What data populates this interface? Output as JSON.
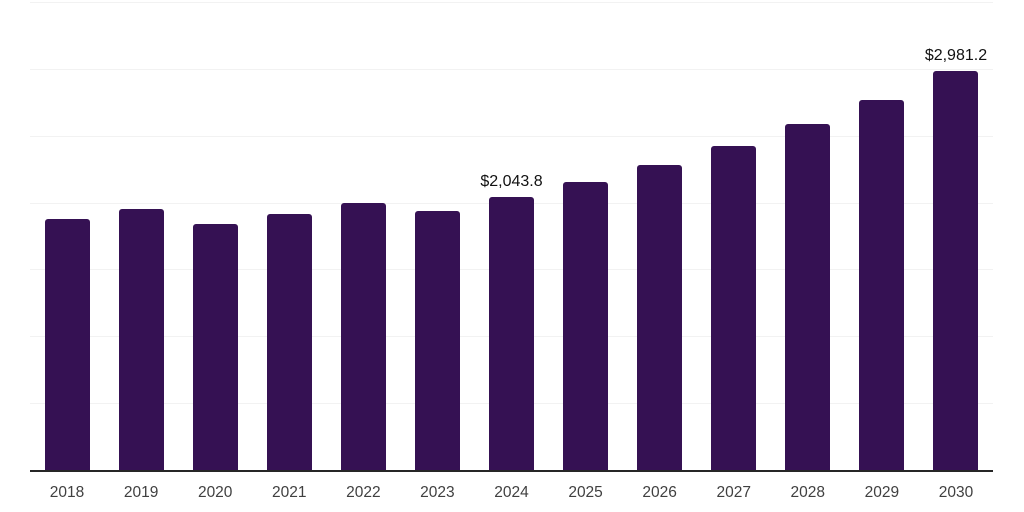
{
  "chart_data": {
    "type": "bar",
    "title": "",
    "xlabel": "",
    "ylabel": "",
    "categories": [
      "2018",
      "2019",
      "2020",
      "2021",
      "2022",
      "2023",
      "2024",
      "2025",
      "2026",
      "2027",
      "2028",
      "2029",
      "2030"
    ],
    "values": [
      1880,
      1950,
      1840,
      1915,
      2000,
      1940,
      2043.8,
      2155,
      2280,
      2420,
      2585,
      2765,
      2981.2
    ],
    "bar_labels": {
      "2024": "$2,043.8",
      "2030": "$2,981.2"
    },
    "ylim": [
      0,
      3500
    ],
    "gridline_interval": 500,
    "grid": true,
    "legend": "none",
    "y_axis_tick_labels": "none",
    "colors": {
      "bar": "#351153",
      "gridline": "#f2f2f2",
      "axis_line": "#262626",
      "tick_label": "#404040",
      "value_label": "#111111",
      "background": "#ffffff"
    }
  }
}
